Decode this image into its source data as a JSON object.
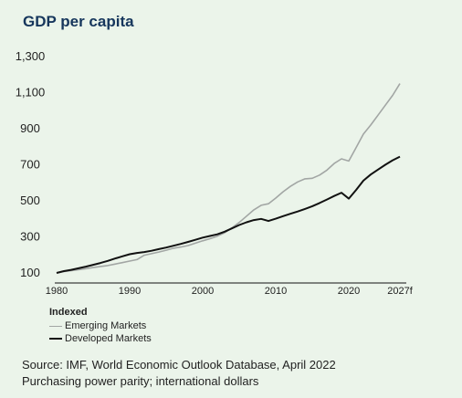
{
  "chart_data": {
    "type": "line",
    "title": "GDP per capita",
    "xlabel": "",
    "ylabel": "",
    "ylim": [
      100,
      1300
    ],
    "xlim": [
      1980,
      2027
    ],
    "y_ticks": [
      "1,300",
      "1,100",
      "900",
      "700",
      "500",
      "300",
      "100"
    ],
    "x_ticks": [
      "1980",
      "1990",
      "2000",
      "2010",
      "2020",
      "2027f"
    ],
    "grid": false,
    "legend": {
      "title": "Indexed",
      "placement": "bottom-left"
    },
    "series": [
      {
        "name": "Emerging Markets",
        "color": "#a2a6a4",
        "x": [
          1980,
          1981,
          1982,
          1983,
          1984,
          1985,
          1986,
          1987,
          1988,
          1989,
          1990,
          1991,
          1992,
          1993,
          1994,
          1995,
          1996,
          1997,
          1998,
          1999,
          2000,
          2001,
          2002,
          2003,
          2004,
          2005,
          2006,
          2007,
          2008,
          2009,
          2010,
          2011,
          2012,
          2013,
          2014,
          2015,
          2016,
          2017,
          2018,
          2019,
          2020,
          2021,
          2022,
          2023,
          2024,
          2025,
          2026,
          2027
        ],
        "y": [
          100,
          108,
          113,
          118,
          124,
          130,
          136,
          141,
          149,
          157,
          166,
          174,
          198,
          207,
          216,
          226,
          237,
          244,
          252,
          265,
          278,
          290,
          304,
          323,
          350,
          380,
          415,
          450,
          475,
          484,
          515,
          550,
          580,
          605,
          622,
          625,
          643,
          670,
          707,
          733,
          721,
          795,
          870,
          920,
          975,
          1030,
          1085,
          1150
        ]
      },
      {
        "name": "Developed Markets",
        "color": "#111111",
        "x": [
          1980,
          1981,
          1982,
          1983,
          1984,
          1985,
          1986,
          1987,
          1988,
          1989,
          1990,
          1991,
          1992,
          1993,
          1994,
          1995,
          1996,
          1997,
          1998,
          1999,
          2000,
          2001,
          2002,
          2003,
          2004,
          2005,
          2006,
          2007,
          2008,
          2009,
          2010,
          2011,
          2012,
          2013,
          2014,
          2015,
          2016,
          2017,
          2018,
          2019,
          2020,
          2021,
          2022,
          2023,
          2024,
          2025,
          2026,
          2027
        ],
        "y": [
          100,
          110,
          117,
          126,
          135,
          145,
          155,
          167,
          180,
          192,
          204,
          211,
          216,
          223,
          232,
          241,
          251,
          261,
          272,
          284,
          296,
          305,
          314,
          329,
          347,
          366,
          381,
          393,
          400,
          388,
          401,
          415,
          428,
          441,
          455,
          470,
          488,
          507,
          527,
          545,
          512,
          560,
          612,
          646,
          673,
          700,
          725,
          745
        ]
      }
    ]
  },
  "footnotes": [
    "Source: IMF, World Economic Outlook Database, April 2022",
    "Purchasing power parity; international dollars"
  ]
}
